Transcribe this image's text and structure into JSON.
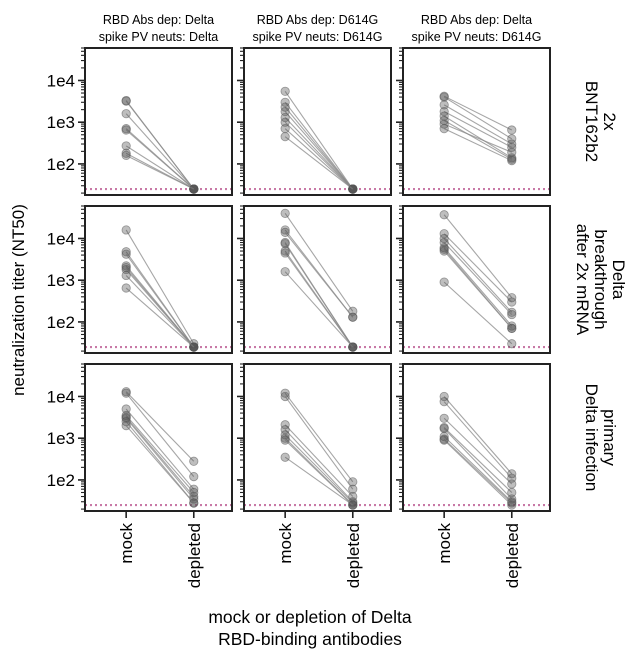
{
  "figure": {
    "y_label": "neutralization titer (NT50)",
    "x_label_lines": [
      "mock or depletion of Delta",
      "RBD-binding antibodies"
    ],
    "colors": {
      "points": "#555555",
      "lines": "#888888",
      "limit_line": "#c879a6",
      "frame": "#222222"
    }
  },
  "chart_data": {
    "type": "scatter",
    "y_scale": "log",
    "ylim": [
      18,
      60000
    ],
    "y_ticks": [
      100,
      1000,
      10000
    ],
    "y_tick_labels": [
      "1e2",
      "1e3",
      "1e4"
    ],
    "categories": [
      "mock",
      "depleted"
    ],
    "limit_of_detection": 25,
    "columns": [
      {
        "title_lines": [
          "RBD Abs dep: Delta",
          "spike PV neuts: Delta"
        ]
      },
      {
        "title_lines": [
          "RBD Abs dep: D614G",
          "spike PV neuts: D614G"
        ]
      },
      {
        "title_lines": [
          "RBD Abs dep: Delta",
          "spike PV neuts: D614G"
        ]
      }
    ],
    "rows": [
      {
        "label_lines": [
          "2x",
          "BNT162b2"
        ]
      },
      {
        "label_lines": [
          "Delta",
          "breakthrough",
          "after 2x mRNA"
        ]
      },
      {
        "label_lines": [
          "primary",
          "Delta infection"
        ]
      }
    ],
    "panels": [
      [
        {
          "pairs": [
            [
              3300,
              25
            ],
            [
              3200,
              25
            ],
            [
              1600,
              25
            ],
            [
              700,
              25
            ],
            [
              650,
              25
            ],
            [
              270,
              25
            ],
            [
              180,
              25
            ],
            [
              160,
              25
            ]
          ]
        },
        {
          "pairs": [
            [
              5500,
              25
            ],
            [
              3000,
              25
            ],
            [
              2300,
              25
            ],
            [
              1800,
              25
            ],
            [
              1300,
              25
            ],
            [
              1000,
              25
            ],
            [
              700,
              25
            ],
            [
              450,
              25
            ]
          ]
        },
        {
          "pairs": [
            [
              4200,
              650
            ],
            [
              4000,
              400
            ],
            [
              2600,
              300
            ],
            [
              1800,
              250
            ],
            [
              1400,
              140
            ],
            [
              1100,
              130
            ],
            [
              900,
              190
            ],
            [
              700,
              120
            ]
          ]
        }
      ],
      [
        {
          "pairs": [
            [
              16000,
              30
            ],
            [
              4800,
              25
            ],
            [
              4200,
              25
            ],
            [
              2200,
              25
            ],
            [
              2000,
              25
            ],
            [
              1800,
              25
            ],
            [
              1300,
              25
            ],
            [
              650,
              25
            ]
          ]
        },
        {
          "pairs": [
            [
              40000,
              180
            ],
            [
              16000,
              130
            ],
            [
              14000,
              130
            ],
            [
              8000,
              25
            ],
            [
              7500,
              25
            ],
            [
              5000,
              25
            ],
            [
              4500,
              25
            ],
            [
              1600,
              25
            ]
          ]
        },
        {
          "pairs": [
            [
              37000,
              380
            ],
            [
              13000,
              300
            ],
            [
              10000,
              170
            ],
            [
              8000,
              150
            ],
            [
              6000,
              80
            ],
            [
              5500,
              70
            ],
            [
              5000,
              70
            ],
            [
              900,
              30
            ]
          ]
        }
      ],
      [
        {
          "pairs": [
            [
              13000,
              280
            ],
            [
              12000,
              120
            ],
            [
              5000,
              60
            ],
            [
              3500,
              50
            ],
            [
              3200,
              40
            ],
            [
              3000,
              35
            ],
            [
              2500,
              28
            ],
            [
              2000,
              28
            ]
          ]
        },
        {
          "pairs": [
            [
              12000,
              90
            ],
            [
              10000,
              60
            ],
            [
              2100,
              40
            ],
            [
              1600,
              30
            ],
            [
              1200,
              28
            ],
            [
              1000,
              25
            ],
            [
              900,
              25
            ],
            [
              350,
              25
            ]
          ]
        },
        {
          "pairs": [
            [
              10000,
              140
            ],
            [
              7500,
              110
            ],
            [
              3000,
              80
            ],
            [
              1800,
              50
            ],
            [
              1700,
              35
            ],
            [
              1100,
              30
            ],
            [
              950,
              28
            ],
            [
              900,
              25
            ]
          ]
        }
      ]
    ]
  }
}
